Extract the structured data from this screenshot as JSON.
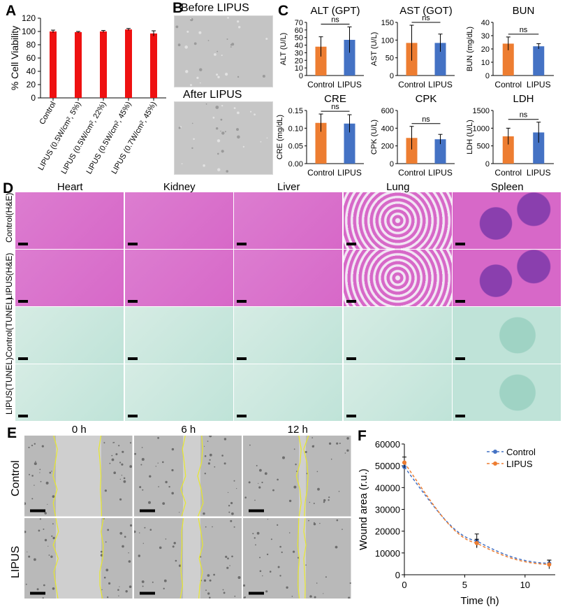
{
  "panels": {
    "a": "A",
    "b": "B",
    "c": "C",
    "d": "D",
    "e": "E",
    "f": "F"
  },
  "colors": {
    "red": "#ee1111",
    "orange": "#ed7d31",
    "blue": "#4472c4",
    "he_pink": "#d768c8",
    "he_dark": "#8a3fae",
    "tunel": "#bfe3d8",
    "gray": "#b9b9b9",
    "yellow": "#e8e82a"
  },
  "chart_data": [
    {
      "id": "A",
      "type": "bar",
      "ylabel": "% Cell Viability",
      "ylim": [
        0,
        120
      ],
      "yticks": [
        0,
        20,
        40,
        60,
        80,
        100,
        120
      ],
      "categories": [
        "Control",
        "LIPUS (0.5W/cm², 5%)",
        "LIPUS (0.5W/cm², 22%)",
        "LIPUS (0.5W/cm², 45%)",
        "LIPUS (0.7W/cm², 45%)"
      ],
      "values": [
        100,
        99,
        100,
        103,
        97
      ],
      "errors": [
        2,
        1,
        1.5,
        1.5,
        4
      ]
    },
    {
      "id": "C-ALT",
      "type": "bar",
      "title": "ALT (GPT)",
      "ylabel": "ALT (U/L)",
      "ylim": [
        0,
        70
      ],
      "yticks": [
        0,
        10,
        20,
        30,
        40,
        50,
        60,
        70
      ],
      "categories": [
        "Control",
        "LIPUS"
      ],
      "values": [
        38,
        47
      ],
      "errors": [
        13,
        17
      ],
      "sig": "ns"
    },
    {
      "id": "C-AST",
      "type": "bar",
      "title": "AST (GOT)",
      "ylabel": "AST (U/L)",
      "ylim": [
        0,
        150
      ],
      "yticks": [
        0,
        50,
        100,
        150
      ],
      "categories": [
        "Control",
        "LIPUS"
      ],
      "values": [
        92,
        92
      ],
      "errors": [
        50,
        25
      ],
      "sig": "ns"
    },
    {
      "id": "C-BUN",
      "type": "bar",
      "title": "BUN",
      "ylabel": "BUN (mg/dL)",
      "ylim": [
        0,
        40
      ],
      "yticks": [
        0,
        10,
        20,
        30,
        40
      ],
      "categories": [
        "Control",
        "LIPUS"
      ],
      "values": [
        24,
        22
      ],
      "errors": [
        5,
        2
      ],
      "sig": "ns"
    },
    {
      "id": "C-CRE",
      "type": "bar",
      "title": "CRE",
      "ylabel": "CRE (mg/dL)",
      "ylim": [
        0,
        0.15
      ],
      "yticks": [
        0.0,
        0.05,
        0.1,
        0.15
      ],
      "tickfmt": 2,
      "categories": [
        "Control",
        "LIPUS"
      ],
      "values": [
        0.115,
        0.113
      ],
      "errors": [
        0.025,
        0.025
      ],
      "sig": "ns"
    },
    {
      "id": "C-CPK",
      "type": "bar",
      "title": "CPK",
      "ylabel": "CPK (U/L)",
      "ylim": [
        0,
        600
      ],
      "yticks": [
        0,
        200,
        400,
        600
      ],
      "categories": [
        "Control",
        "LIPUS"
      ],
      "values": [
        290,
        275
      ],
      "errors": [
        130,
        55
      ],
      "sig": "ns"
    },
    {
      "id": "C-LDH",
      "type": "bar",
      "title": "LDH",
      "ylabel": "LDH (U/L)",
      "ylim": [
        0,
        1500
      ],
      "yticks": [
        0,
        500,
        1000,
        1500
      ],
      "categories": [
        "Control",
        "LIPUS"
      ],
      "values": [
        770,
        880
      ],
      "errors": [
        230,
        290
      ],
      "sig": "ns"
    },
    {
      "id": "F",
      "type": "line",
      "xlabel": "Time (h)",
      "ylabel": "Wound area (r.u.)",
      "xlim": [
        0,
        12.5
      ],
      "ylim": [
        0,
        60000
      ],
      "xticks": [
        0,
        5,
        10
      ],
      "yticks": [
        0,
        10000,
        20000,
        30000,
        40000,
        50000,
        60000
      ],
      "x": [
        0,
        6,
        12
      ],
      "series": [
        {
          "name": "Control",
          "values": [
            49500,
            15500,
            5200
          ],
          "errors": [
            1800,
            3200,
            1500
          ]
        },
        {
          "name": "LIPUS",
          "values": [
            51500,
            14500,
            4700
          ],
          "errors": [
            2500,
            1800,
            2000
          ]
        }
      ]
    }
  ],
  "panelB": {
    "before": "Before LIPUS",
    "after": "After LIPUS"
  },
  "panelD": {
    "columns": [
      "Heart",
      "Kidney",
      "Liver",
      "Lung",
      "Spleen"
    ],
    "rows": [
      "Control(H&E)",
      "LIPUS(H&E)",
      "Control(TUNEL)",
      "LIPUS(TUNEL)"
    ]
  },
  "panelE": {
    "columns": [
      "0 h",
      "6 h",
      "12 h"
    ],
    "rows": [
      "Control",
      "LIPUS"
    ]
  }
}
